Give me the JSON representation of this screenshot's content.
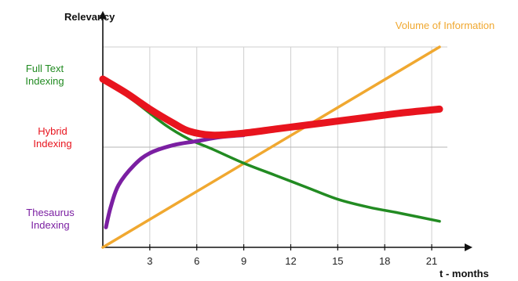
{
  "chart_data": {
    "type": "line",
    "title": "",
    "ylabel": "Relevancy",
    "xlabel": "t - months",
    "xlim": [
      0,
      22
    ],
    "ylim": [
      0,
      1
    ],
    "xticks": [
      3,
      6,
      9,
      12,
      15,
      18,
      21
    ],
    "grid": true,
    "reference_line_y": 0.5,
    "series": [
      {
        "name": "Full Text Indexing",
        "label_lines": [
          "Full Text",
          "Indexing"
        ],
        "color": "#228b22",
        "points": [
          [
            0,
            0.84
          ],
          [
            2,
            0.73
          ],
          [
            4,
            0.61
          ],
          [
            5.5,
            0.54
          ],
          [
            7,
            0.49
          ],
          [
            9,
            0.42
          ],
          [
            11,
            0.36
          ],
          [
            13,
            0.3
          ],
          [
            15,
            0.24
          ],
          [
            17,
            0.2
          ],
          [
            19,
            0.17
          ],
          [
            21.5,
            0.13
          ]
        ]
      },
      {
        "name": "Hybrid Indexing",
        "label_lines": [
          "Hybrid",
          "Indexing"
        ],
        "color": "#e8141e",
        "points": [
          [
            0,
            0.84
          ],
          [
            1.5,
            0.77
          ],
          [
            3,
            0.69
          ],
          [
            4.5,
            0.62
          ],
          [
            5.5,
            0.58
          ],
          [
            7,
            0.56
          ],
          [
            9,
            0.57
          ],
          [
            11,
            0.59
          ],
          [
            13,
            0.61
          ],
          [
            15,
            0.63
          ],
          [
            17,
            0.65
          ],
          [
            19,
            0.67
          ],
          [
            21.5,
            0.69
          ]
        ]
      },
      {
        "name": "Thesaurus Indexing",
        "label_lines": [
          "Thesaurus",
          "Indexing"
        ],
        "color": "#7b1fa2",
        "points": [
          [
            0.2,
            0.1
          ],
          [
            0.5,
            0.2
          ],
          [
            1,
            0.31
          ],
          [
            2,
            0.41
          ],
          [
            3,
            0.47
          ],
          [
            4.5,
            0.51
          ],
          [
            6,
            0.53
          ],
          [
            7.5,
            0.55
          ],
          [
            9,
            0.56
          ]
        ]
      },
      {
        "name": "Volume of Information",
        "label_lines": [
          "Volume of Information"
        ],
        "color": "#f0a830",
        "points": [
          [
            0,
            0.0
          ],
          [
            21.5,
            1.0
          ]
        ]
      }
    ]
  }
}
